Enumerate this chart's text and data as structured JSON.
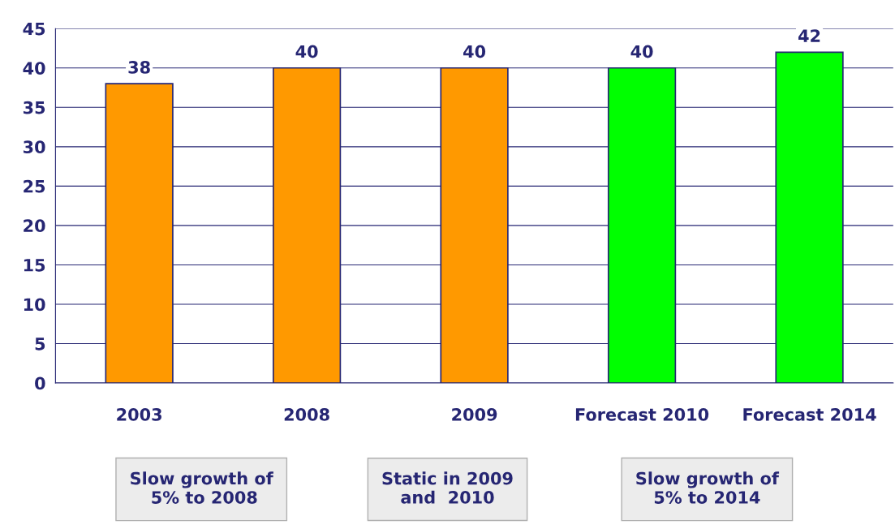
{
  "chart_data": {
    "type": "bar",
    "categories": [
      "2003",
      "2008",
      "2009",
      "Forecast 2010",
      "Forecast 2014"
    ],
    "values": [
      38,
      40,
      40,
      40,
      42
    ],
    "colors": [
      "#ff9900",
      "#ff9900",
      "#ff9900",
      "#00ff00",
      "#00ff00"
    ],
    "ylim": [
      0,
      45
    ],
    "yticks": [
      0,
      5,
      10,
      15,
      20,
      25,
      30,
      35,
      40,
      45
    ],
    "grid": "y",
    "data_labels": true,
    "annotations": [
      "Slow growth of\n 5% to 2008",
      "Static in 2009\nand  2010",
      "Slow growth of\n5% to 2014"
    ]
  }
}
